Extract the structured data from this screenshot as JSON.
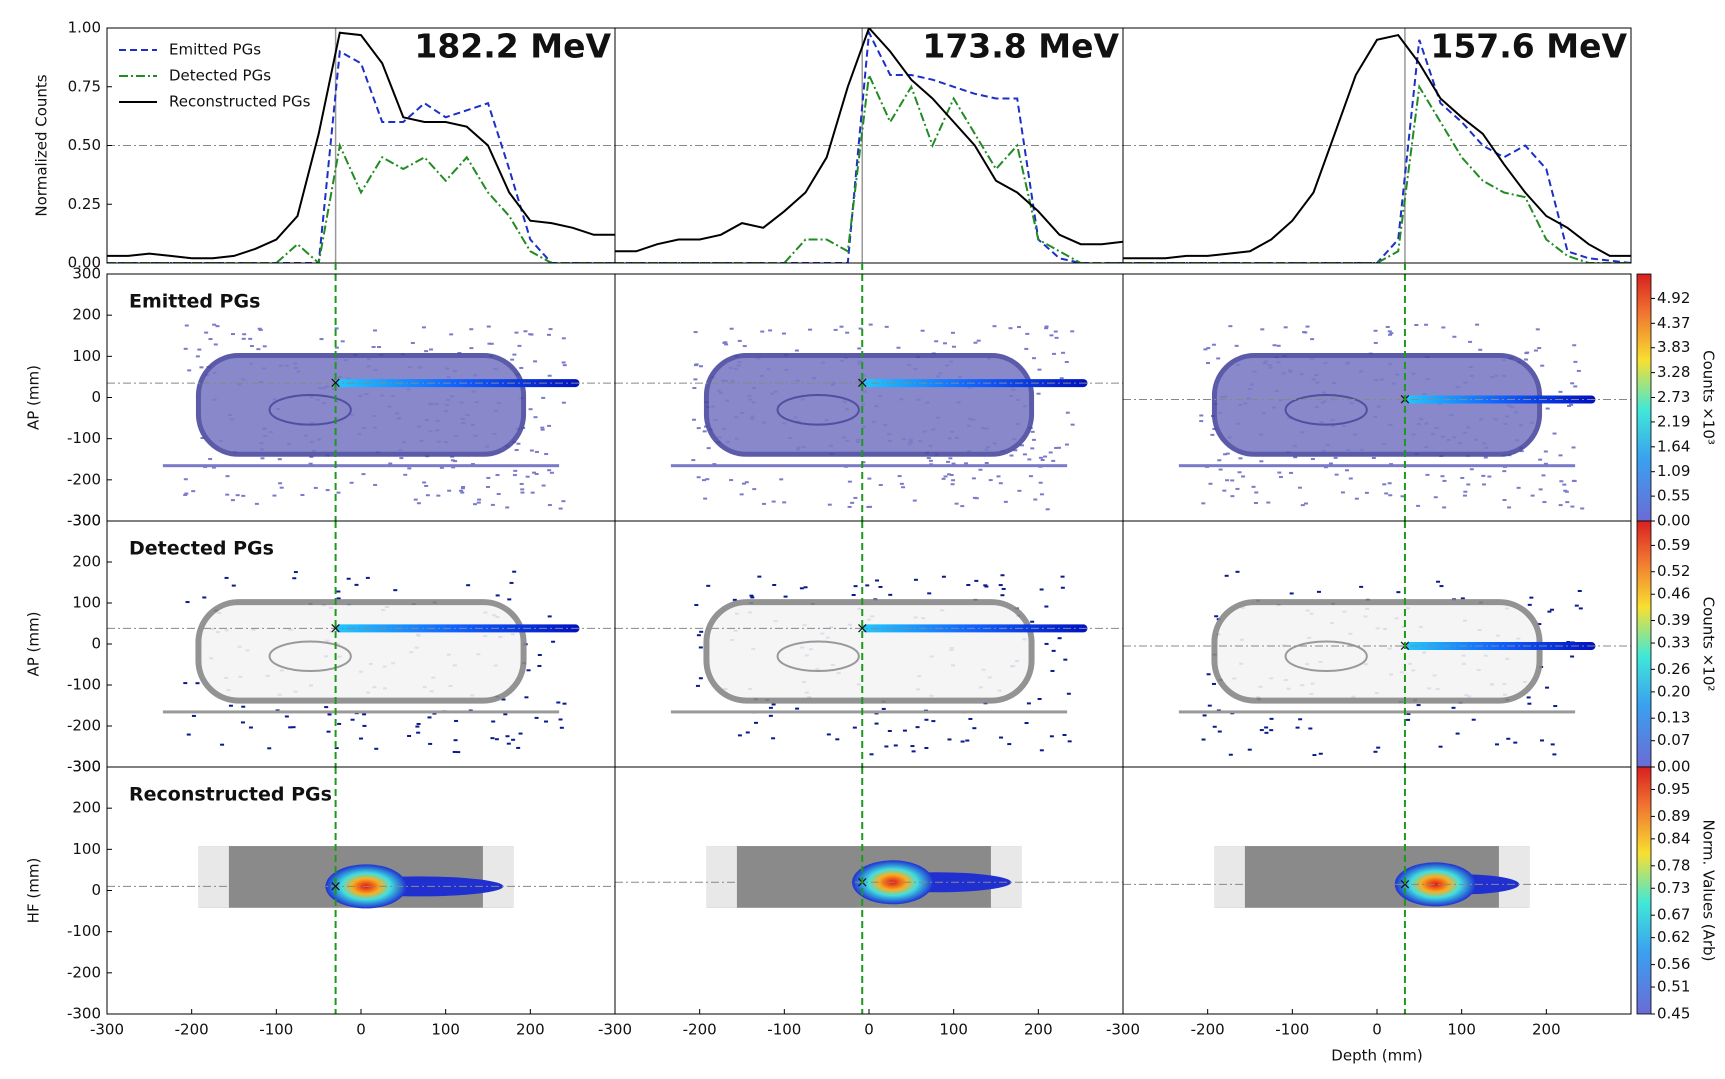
{
  "chart_data": [
    {
      "type": "line",
      "title": "182.2 MeV",
      "ylabel": "Normalized Counts",
      "x": [
        -300,
        -275,
        -250,
        -225,
        -200,
        -175,
        -150,
        -125,
        -100,
        -75,
        -50,
        -25,
        0,
        25,
        50,
        75,
        100,
        125,
        150,
        175,
        200,
        225,
        250,
        275,
        300
      ],
      "xlim": [
        -300,
        300
      ],
      "ylim": [
        0,
        1
      ],
      "yticks": [
        {
          "value": 0,
          "label": "0.00"
        },
        0.25,
        {
          "value": 0.5,
          "label": "0.50"
        },
        0.75,
        {
          "value": 1,
          "label": "1.00"
        }
      ],
      "hline": 0.5,
      "vline": -30,
      "series": [
        {
          "name": "Emitted PGs",
          "color": "#1c2fc8",
          "linestyle": "dashed",
          "values": [
            0,
            0,
            0,
            0,
            0,
            0,
            0,
            0,
            0,
            0,
            0,
            0.9,
            0.85,
            0.6,
            0.6,
            0.68,
            0.62,
            0.65,
            0.68,
            0.4,
            0.1,
            0,
            0,
            0,
            0
          ]
        },
        {
          "name": "Detected PGs",
          "color": "#238b23",
          "linestyle": "dashdot",
          "values": [
            0,
            0,
            0,
            0,
            0,
            0,
            0,
            0,
            0,
            0.08,
            0,
            0.5,
            0.3,
            0.45,
            0.4,
            0.45,
            0.35,
            0.45,
            0.3,
            0.2,
            0.05,
            0,
            0,
            0,
            0
          ]
        },
        {
          "name": "Reconstructed PGs",
          "color": "#000000",
          "linestyle": "solid",
          "values": [
            0.03,
            0.03,
            0.04,
            0.03,
            0.02,
            0.02,
            0.03,
            0.06,
            0.1,
            0.2,
            0.55,
            0.98,
            0.97,
            0.85,
            0.62,
            0.6,
            0.6,
            0.58,
            0.5,
            0.3,
            0.18,
            0.17,
            0.15,
            0.12,
            0.12
          ]
        }
      ]
    },
    {
      "type": "line",
      "title": "173.8 MeV",
      "x": [
        -300,
        -275,
        -250,
        -225,
        -200,
        -175,
        -150,
        -125,
        -100,
        -75,
        -50,
        -25,
        0,
        25,
        50,
        75,
        100,
        125,
        150,
        175,
        200,
        225,
        250,
        275,
        300
      ],
      "xlim": [
        -300,
        300
      ],
      "ylim": [
        0,
        1
      ],
      "hline": 0.5,
      "vline": -8,
      "series": [
        {
          "color": "#1c2fc8",
          "linestyle": "dashed",
          "values": [
            0,
            0,
            0,
            0,
            0,
            0,
            0,
            0,
            0,
            0,
            0,
            0,
            0.98,
            0.8,
            0.8,
            0.78,
            0.75,
            0.72,
            0.7,
            0.7,
            0.1,
            0.02,
            0,
            0,
            0
          ]
        },
        {
          "color": "#238b23",
          "linestyle": "dashdot",
          "values": [
            0,
            0,
            0,
            0,
            0,
            0,
            0,
            0,
            0,
            0.1,
            0.1,
            0.05,
            0.8,
            0.6,
            0.75,
            0.5,
            0.7,
            0.55,
            0.4,
            0.5,
            0.1,
            0.05,
            0,
            0,
            0
          ]
        },
        {
          "color": "#000000",
          "linestyle": "solid",
          "values": [
            0.05,
            0.05,
            0.08,
            0.1,
            0.1,
            0.12,
            0.17,
            0.15,
            0.22,
            0.3,
            0.45,
            0.75,
            1.0,
            0.9,
            0.78,
            0.7,
            0.6,
            0.5,
            0.35,
            0.3,
            0.22,
            0.12,
            0.08,
            0.08,
            0.09
          ]
        }
      ]
    },
    {
      "type": "line",
      "title": "157.6 MeV",
      "x": [
        -300,
        -275,
        -250,
        -225,
        -200,
        -175,
        -150,
        -125,
        -100,
        -75,
        -50,
        -25,
        0,
        25,
        50,
        75,
        100,
        125,
        150,
        175,
        200,
        225,
        250,
        275,
        300
      ],
      "xlim": [
        -300,
        300
      ],
      "ylim": [
        0,
        1
      ],
      "hline": 0.5,
      "vline": 33,
      "series": [
        {
          "color": "#1c2fc8",
          "linestyle": "dashed",
          "values": [
            0,
            0,
            0,
            0,
            0,
            0,
            0,
            0,
            0,
            0,
            0,
            0,
            0,
            0.1,
            0.95,
            0.68,
            0.6,
            0.5,
            0.45,
            0.5,
            0.4,
            0.05,
            0.02,
            0.01,
            0
          ]
        },
        {
          "color": "#238b23",
          "linestyle": "dashdot",
          "values": [
            0,
            0,
            0,
            0,
            0,
            0,
            0,
            0,
            0,
            0,
            0,
            0,
            0,
            0.05,
            0.75,
            0.6,
            0.45,
            0.35,
            0.3,
            0.28,
            0.1,
            0.03,
            0,
            0,
            0
          ]
        },
        {
          "color": "#000000",
          "linestyle": "solid",
          "values": [
            0.02,
            0.02,
            0.02,
            0.03,
            0.03,
            0.04,
            0.05,
            0.1,
            0.18,
            0.3,
            0.55,
            0.8,
            0.95,
            0.97,
            0.85,
            0.7,
            0.62,
            0.55,
            0.42,
            0.3,
            0.2,
            0.15,
            0.08,
            0.03,
            0.03
          ]
        }
      ]
    },
    {
      "type": "image",
      "label": "Emitted PGs",
      "ylabel": "AP (mm)",
      "xlim": [
        -300,
        300
      ],
      "ylim": [
        -300,
        300
      ],
      "yticks": [
        -300,
        -200,
        -100,
        0,
        100,
        200,
        300
      ],
      "hline": 35
    },
    {
      "type": "image",
      "xlim": [
        -300,
        300
      ],
      "ylim": [
        -300,
        300
      ],
      "hline": 35
    },
    {
      "type": "image",
      "xlim": [
        -300,
        300
      ],
      "ylim": [
        -300,
        300
      ],
      "hline": -5
    },
    {
      "type": "image",
      "label": "Detected PGs",
      "ylabel": "AP (mm)",
      "xlim": [
        -300,
        300
      ],
      "ylim": [
        -300,
        300
      ],
      "yticks": [
        -300,
        -200,
        -100,
        0,
        100,
        200,
        300
      ],
      "hline": 38
    },
    {
      "type": "image",
      "xlim": [
        -300,
        300
      ],
      "ylim": [
        -300,
        300
      ],
      "hline": 38
    },
    {
      "type": "image",
      "xlim": [
        -300,
        300
      ],
      "ylim": [
        -300,
        300
      ],
      "hline": -5
    },
    {
      "type": "image",
      "label": "Reconstructed PGs",
      "ylabel": "HF (mm)",
      "xlim": [
        -300,
        300
      ],
      "ylim": [
        -300,
        300
      ],
      "yticks": [
        -300,
        -200,
        -100,
        0,
        100,
        200,
        300
      ],
      "xticks": [
        -300,
        -200,
        -100,
        0,
        100,
        200
      ],
      "hline": 10
    },
    {
      "type": "image",
      "xlim": [
        -300,
        300
      ],
      "ylim": [
        -300,
        300
      ],
      "xticks": [
        -300,
        -200,
        -100,
        0,
        100,
        200
      ],
      "hline": 20
    },
    {
      "type": "image",
      "xlim": [
        -300,
        300
      ],
      "ylim": [
        -300,
        300
      ],
      "xticks": [
        -300,
        -200,
        -100,
        0,
        100,
        200
      ],
      "xlabel": "Depth (mm)",
      "hline": 15
    },
    {
      "type": "colorbar",
      "label": "Counts ×10³",
      "clim": [
        0,
        5.46
      ],
      "ticks": [
        {
          "value": 0,
          "label": "0.00"
        },
        0.55,
        1.09,
        1.64,
        2.19,
        2.73,
        3.28,
        3.83,
        4.37,
        4.92
      ]
    },
    {
      "type": "colorbar",
      "label": "Counts ×10²",
      "clim": [
        0,
        0.655
      ],
      "ticks": [
        {
          "value": 0,
          "label": "0.00"
        },
        0.07,
        0.13,
        {
          "value": 0.2,
          "label": "0.20"
        },
        0.26,
        0.33,
        0.39,
        0.46,
        0.52,
        0.59
      ]
    },
    {
      "type": "colorbar",
      "label": "Norm. Values (Arb)",
      "clim": [
        0.45,
        1.0
      ],
      "ticks": [
        0.45,
        0.51,
        0.56,
        0.62,
        0.67,
        0.73,
        0.78,
        0.84,
        0.89,
        0.95
      ]
    }
  ]
}
